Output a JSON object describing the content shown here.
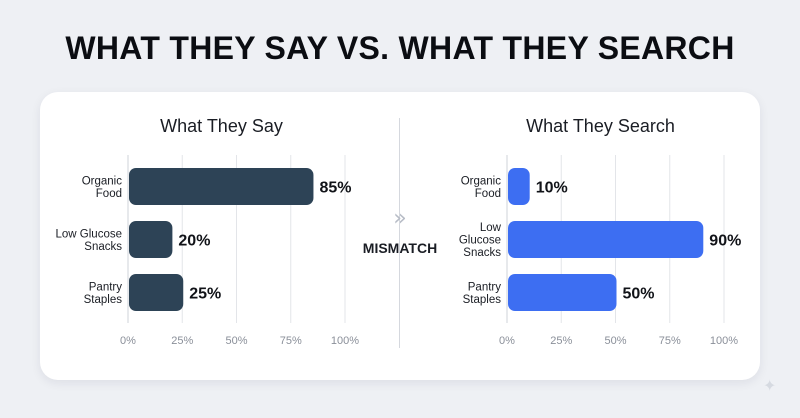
{
  "page": {
    "title": "WHAT THEY SAY VS. WHAT THEY SEARCH"
  },
  "center": {
    "icon": "double-chevron-right-icon",
    "icon_glyph": "»",
    "label": "MISMATCH"
  },
  "watermark": {
    "icon": "sparkle-icon",
    "glyph": "✦"
  },
  "colors": {
    "say_bar": "#2d4356",
    "search_bar": "#3d6ef2",
    "grid": "#e3e5e9",
    "text": "#1a1d24",
    "tick": "#8a8f99"
  },
  "chart_data": [
    {
      "type": "bar",
      "orientation": "horizontal",
      "title": "What They Say",
      "categories": [
        [
          "Organic",
          "Food"
        ],
        [
          "Low Glucose",
          "Snacks"
        ],
        [
          "Pantry",
          "Staples"
        ]
      ],
      "values": [
        85,
        20,
        25
      ],
      "value_labels": [
        "85%",
        "20%",
        "25%"
      ],
      "xlim": [
        0,
        100
      ],
      "xticks": [
        "0%",
        "25%",
        "50%",
        "75%",
        "100%"
      ],
      "grid": true,
      "color": "#2d4356"
    },
    {
      "type": "bar",
      "orientation": "horizontal",
      "title": "What They Search",
      "categories": [
        [
          "Organic",
          "Food"
        ],
        [
          "Low",
          "Glucose",
          "Snacks"
        ],
        [
          "Pantry",
          "Staples"
        ]
      ],
      "values": [
        10,
        90,
        50
      ],
      "value_labels": [
        "10%",
        "90%",
        "50%"
      ],
      "xlim": [
        0,
        100
      ],
      "xticks": [
        "0%",
        "25%",
        "50%",
        "75%",
        "100%"
      ],
      "grid": true,
      "color": "#3d6ef2"
    }
  ]
}
